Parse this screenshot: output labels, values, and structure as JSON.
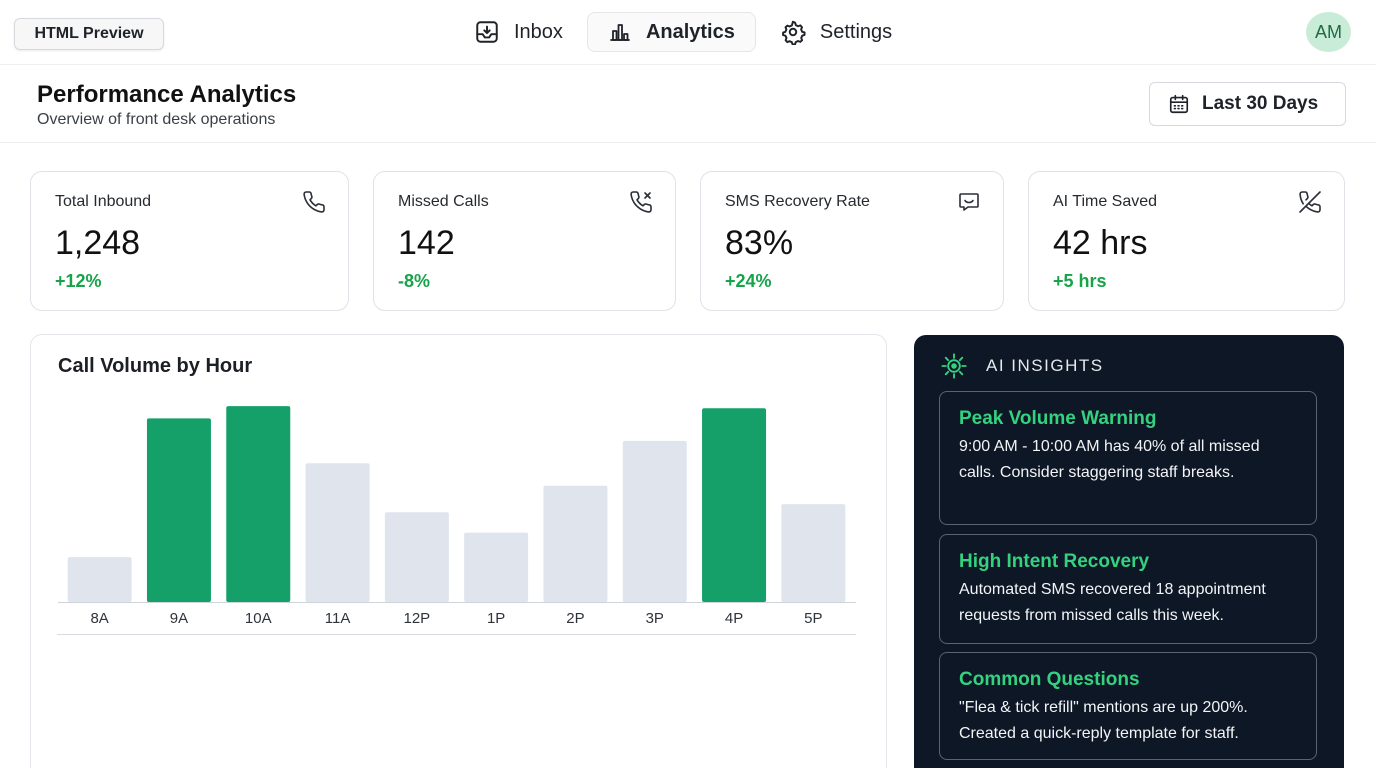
{
  "toolbar": {
    "preview_label": "HTML Preview"
  },
  "nav": {
    "items": [
      {
        "label": "Inbox",
        "icon": "inbox-icon",
        "active": false
      },
      {
        "label": "Analytics",
        "icon": "bar-chart-icon",
        "active": true
      },
      {
        "label": "Settings",
        "icon": "gear-icon",
        "active": false
      }
    ]
  },
  "user": {
    "initials": "AM"
  },
  "header": {
    "title": "Performance Analytics",
    "subtitle": "Overview of front desk operations",
    "range_label": "Last 30 Days"
  },
  "kpis": [
    {
      "label": "Total Inbound",
      "value": "1,248",
      "delta": "+12%",
      "icon": "phone-icon"
    },
    {
      "label": "Missed Calls",
      "value": "142",
      "delta": "-8%",
      "icon": "phone-missed-icon"
    },
    {
      "label": "SMS Recovery Rate",
      "value": "83%",
      "delta": "+24%",
      "icon": "message-icon"
    },
    {
      "label": "AI Time Saved",
      "value": "42 hrs",
      "delta": "+5 hrs",
      "icon": "phone-off-icon"
    }
  ],
  "chart_data": {
    "type": "bar",
    "title": "Call Volume by Hour",
    "categories": [
      "8A",
      "9A",
      "10A",
      "11A",
      "12P",
      "1P",
      "2P",
      "3P",
      "4P",
      "5P"
    ],
    "values": [
      22,
      90,
      96,
      68,
      44,
      34,
      57,
      79,
      95,
      48
    ],
    "highlighted": [
      false,
      true,
      true,
      false,
      false,
      false,
      false,
      false,
      true,
      false
    ],
    "ylim": [
      0,
      100
    ],
    "colors": {
      "highlight": "#16a069",
      "normal": "#e0e4ec"
    }
  },
  "ai_insights": {
    "heading": "AI INSIGHTS",
    "items": [
      {
        "title": "Peak Volume Warning",
        "body": "9:00 AM - 10:00 AM has 40% of all missed calls. Consider staggering staff breaks."
      },
      {
        "title": "High Intent Recovery",
        "body": "Automated SMS recovered 18 appointment requests from missed calls this week."
      },
      {
        "title": "Common Questions",
        "body": "\"Flea & tick refill\" mentions are up 200%. Created a quick-reply template for staff."
      }
    ]
  },
  "colors": {
    "accent": "#16a34a",
    "dark_panel": "#0d1726",
    "insight_title": "#34d27f"
  }
}
